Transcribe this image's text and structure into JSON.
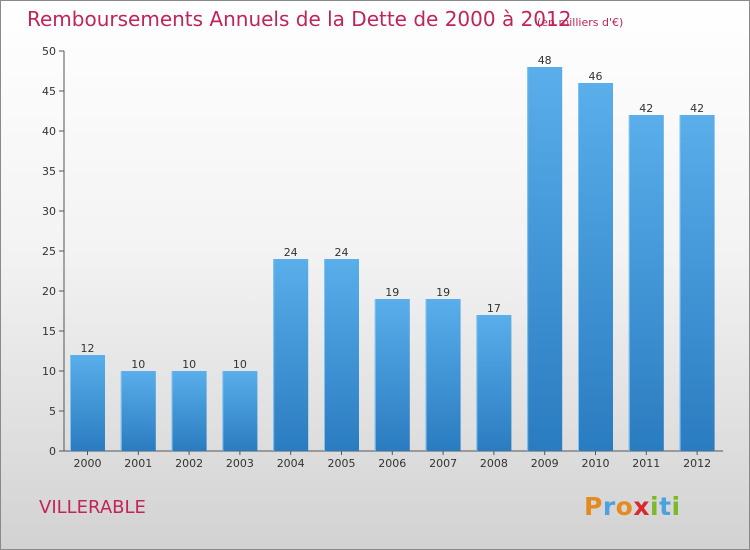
{
  "title": "Remboursements Annuels de la Dette de 2000 à 2012",
  "unit_note": "(en milliers d'€)",
  "commune": "VILLERABLE",
  "logo": {
    "text": "Proxiti",
    "letters": [
      "P",
      "r",
      "o",
      "x",
      "i",
      "t",
      "i"
    ],
    "colors": [
      "#e58a1f",
      "#4aa3df",
      "#e58a1f",
      "#d9282f",
      "#7ab929",
      "#4aa3df",
      "#7ab929"
    ]
  },
  "colors": {
    "title": "#c0245a",
    "bar_top": "#5aaeea",
    "bar_bottom": "#2a7cc0"
  },
  "chart_data": {
    "type": "bar",
    "categories": [
      "2000",
      "2001",
      "2002",
      "2003",
      "2004",
      "2005",
      "2006",
      "2007",
      "2008",
      "2009",
      "2010",
      "2011",
      "2012"
    ],
    "values": [
      12,
      10,
      10,
      10,
      24,
      24,
      19,
      19,
      17,
      48,
      46,
      42,
      42
    ],
    "y_ticks": [
      0,
      5,
      10,
      15,
      20,
      25,
      30,
      35,
      40,
      45,
      50
    ],
    "ylim": [
      0,
      50
    ],
    "grid": false,
    "data_labels": true
  }
}
